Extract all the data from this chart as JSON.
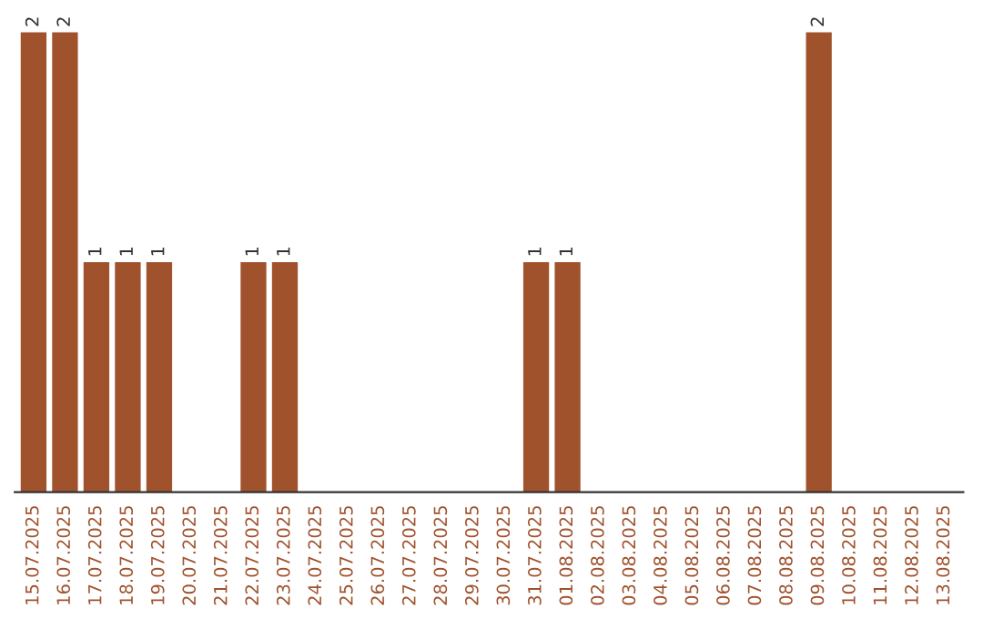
{
  "chart_data": {
    "type": "bar",
    "categories": [
      "15.07.2025",
      "16.07.2025",
      "17.07.2025",
      "18.07.2025",
      "19.07.2025",
      "20.07.2025",
      "21.07.2025",
      "22.07.2025",
      "23.07.2025",
      "24.07.2025",
      "25.07.2025",
      "26.07.2025",
      "27.07.2025",
      "28.07.2025",
      "29.07.2025",
      "30.07.2025",
      "31.07.2025",
      "01.08.2025",
      "02.08.2025",
      "03.08.2025",
      "04.08.2025",
      "05.08.2025",
      "06.08.2025",
      "07.08.2025",
      "08.08.2025",
      "09.08.2025",
      "10.08.2025",
      "11.08.2025",
      "12.08.2025",
      "13.08.2025"
    ],
    "values": [
      2,
      2,
      1,
      1,
      1,
      0,
      0,
      1,
      1,
      0,
      0,
      0,
      0,
      0,
      0,
      0,
      1,
      1,
      0,
      0,
      0,
      0,
      0,
      0,
      0,
      2,
      0,
      0,
      0,
      0
    ],
    "value_labels": [
      "2",
      "2",
      "1",
      "1",
      "1",
      null,
      null,
      "1",
      "1",
      null,
      null,
      null,
      null,
      null,
      null,
      null,
      "1",
      "1",
      null,
      null,
      null,
      null,
      null,
      null,
      null,
      "2",
      null,
      null,
      null,
      null
    ],
    "color": "#a0522d",
    "grid": false,
    "legend": false,
    "tick_labels": "x"
  }
}
